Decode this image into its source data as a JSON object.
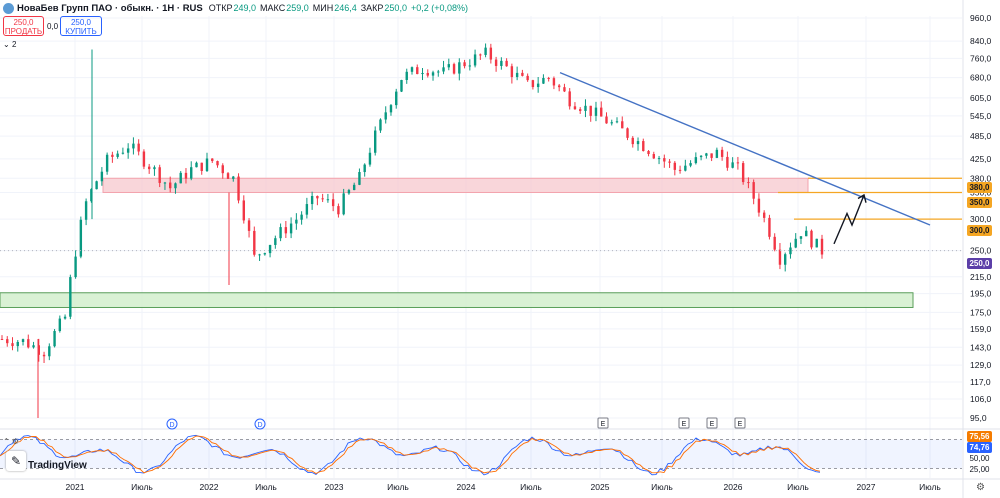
{
  "header": {
    "title": "НоваБев Групп ПАО · обыкн. · 1Н · RUS",
    "open_label": "ОТКР",
    "open_value": "249,0",
    "high_label": "МАКС",
    "high_value": "259,0",
    "low_label": "МИН",
    "low_value": "246,4",
    "close_label": "ЗАКР",
    "close_value": "250,0",
    "change": "+0,2 (+0,08%)"
  },
  "trade": {
    "sell_price": "250,0",
    "sell_label": "ПРОДАТЬ",
    "spread": "0,0",
    "buy_price": "250,0",
    "buy_label": "КУПИТЬ"
  },
  "collapse_label": "2",
  "indicator_controls": "⌃  ⚙",
  "branding": "TradingView",
  "price_axis": [
    "960,0",
    "840,0",
    "760,0",
    "680,0",
    "605,0",
    "545,0",
    "485,0",
    "425,0",
    "380,0",
    "350,0",
    "300,0",
    "250,0",
    "215,0",
    "195,0",
    "175,0",
    "159,0",
    "143,0",
    "129,0",
    "117,0",
    "106,0",
    "95,0"
  ],
  "price_tags": {
    "level380": "380,0",
    "level350": "350,0",
    "level300": "300,0",
    "last": "250,0"
  },
  "osc_tags": {
    "k": "75,56",
    "d": "74,76",
    "level_mid": "50,00",
    "level_low": "25,00"
  },
  "time_axis": [
    "2021",
    "Июль",
    "2022",
    "Июль",
    "2023",
    "Июль",
    "2024",
    "Июль",
    "2025",
    "Июль",
    "2026",
    "Июль",
    "2027",
    "Июль"
  ],
  "events": {
    "dividends": [
      "D",
      "D"
    ],
    "earnings": [
      "E",
      "E",
      "E",
      "E"
    ]
  },
  "colors": {
    "up": "#089981",
    "down": "#f23645",
    "trendline": "#4472c4",
    "level": "#f5a623",
    "resistance_zone": "#f7c5cb",
    "support_zone": "#cfeec9",
    "stoch_k": "#2962ff",
    "stoch_d": "#ff6d00"
  },
  "chart_data": {
    "type": "candlestick",
    "symbol": "НоваБев Групп ПАО",
    "timeframe": "1Н",
    "x": [
      "2020-10",
      "2020-11",
      "2020-12",
      "2021-01",
      "2021-02",
      "2021-03",
      "2021-04",
      "2021-06",
      "2021-08",
      "2021-10",
      "2021-12",
      "2022-02",
      "2022-03",
      "2022-05",
      "2022-07",
      "2022-09",
      "2022-11",
      "2023-01",
      "2023-03",
      "2023-05",
      "2023-07",
      "2023-09",
      "2023-11",
      "2024-01",
      "2024-03",
      "2024-05",
      "2024-07",
      "2024-09",
      "2024-11",
      "2025-01",
      "2025-03",
      "2025-05",
      "2025-07",
      "2025-09",
      "2025-11",
      "2026-01",
      "2026-03",
      "2026-05",
      "2026-06",
      "2026-07"
    ],
    "close": [
      150,
      148,
      140,
      170,
      330,
      420,
      460,
      410,
      360,
      400,
      420,
      380,
      240,
      270,
      300,
      340,
      320,
      380,
      520,
      680,
      720,
      700,
      740,
      780,
      720,
      650,
      680,
      600,
      560,
      520,
      480,
      440,
      400,
      420,
      440,
      400,
      320,
      240,
      280,
      250
    ],
    "levels": [
      380,
      350,
      300
    ],
    "zones": [
      {
        "from": 350,
        "to": 380
      },
      {
        "from": 180,
        "to": 196
      }
    ],
    "last_price": 250,
    "y_scale": "log"
  }
}
